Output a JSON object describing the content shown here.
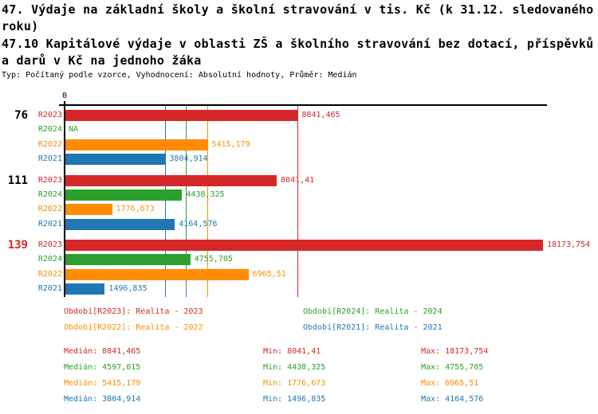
{
  "title": {
    "line1": "47. Výdaje na základní školy a školní stravování v tis. Kč (k 31.12. sledovaného",
    "line2": "roku)",
    "line3": "47.10 Kapitálové výdaje v oblasti ZŠ a školního stravování bez dotací, příspěvků",
    "line4": "a darů v Kč na jednoho žáka",
    "meta": "Typ: Počítaný podle vzorce, Vyhodnocení: Absolutní hodnoty, Průměr: Medián"
  },
  "colors": {
    "red": "#d62728",
    "green": "#2ca02c",
    "orange": "#ff8c00",
    "blue": "#1f77b4",
    "black": "#000000"
  },
  "chart_data": {
    "type": "bar",
    "orientation": "horizontal",
    "x_axis": {
      "zero_label": "0",
      "xlim": [
        0,
        18330
      ],
      "grid": false
    },
    "groups": [
      {
        "label": "76",
        "label_color_key": "black",
        "bars": [
          {
            "series": "R2023",
            "color_key": "red",
            "value": 8841.465,
            "label": "8841,465"
          },
          {
            "series": "R2024",
            "color_key": "green",
            "value": null,
            "label": "NA"
          },
          {
            "series": "R2022",
            "color_key": "orange",
            "value": 5415.179,
            "label": "5415,179"
          },
          {
            "series": "R2021",
            "color_key": "blue",
            "value": 3804.914,
            "label": "3804,914"
          }
        ]
      },
      {
        "label": "111",
        "label_color_key": "black",
        "bars": [
          {
            "series": "R2023",
            "color_key": "red",
            "value": 8041.41,
            "label": "8041,41"
          },
          {
            "series": "R2024",
            "color_key": "green",
            "value": 4438.325,
            "label": "4438,325"
          },
          {
            "series": "R2022",
            "color_key": "orange",
            "value": 1776.673,
            "label": "1776,673"
          },
          {
            "series": "R2021",
            "color_key": "blue",
            "value": 4164.576,
            "label": "4164,576"
          }
        ]
      },
      {
        "label": "139",
        "label_color_key": "red",
        "bars": [
          {
            "series": "R2023",
            "color_key": "red",
            "value": 18173.754,
            "label": "18173,754"
          },
          {
            "series": "R2024",
            "color_key": "green",
            "value": 4755.705,
            "label": "4755,705"
          },
          {
            "series": "R2022",
            "color_key": "orange",
            "value": 6965.51,
            "label": "6965,51"
          },
          {
            "series": "R2021",
            "color_key": "blue",
            "value": 1496.835,
            "label": "1496,835"
          }
        ]
      }
    ],
    "median_lines": [
      {
        "series": "R2021",
        "color_key": "blue",
        "value": 3804.914
      },
      {
        "series": "R2024",
        "color_key": "green",
        "value": 4597.015
      },
      {
        "series": "R2022",
        "color_key": "orange",
        "value": 5415.179
      },
      {
        "series": "R2023",
        "color_key": "red",
        "value": 8841.465
      }
    ]
  },
  "legend": {
    "items": [
      {
        "series": "R2023",
        "color_key": "red",
        "text": "Období[R2023]: Realita - 2023"
      },
      {
        "series": "R2024",
        "color_key": "green",
        "text": "Období[R2024]: Realita - 2024"
      },
      {
        "series": "R2022",
        "color_key": "orange",
        "text": "Období[R2022]: Realita - 2022"
      },
      {
        "series": "R2021",
        "color_key": "blue",
        "text": "Období[R2021]: Realita - 2021"
      }
    ]
  },
  "stats": {
    "labels": {
      "median": "Medián",
      "min": "Min",
      "max": "Max"
    },
    "rows": [
      {
        "series": "R2023",
        "color_key": "red",
        "median": "8841,465",
        "min": "8041,41",
        "max": "18173,754"
      },
      {
        "series": "R2024",
        "color_key": "green",
        "median": "4597,015",
        "min": "4438,325",
        "max": "4755,705"
      },
      {
        "series": "R2022",
        "color_key": "orange",
        "median": "5415,179",
        "min": "1776,673",
        "max": "6965,51"
      },
      {
        "series": "R2021",
        "color_key": "blue",
        "median": "3804,914",
        "min": "1496,835",
        "max": "4164,576"
      }
    ]
  }
}
